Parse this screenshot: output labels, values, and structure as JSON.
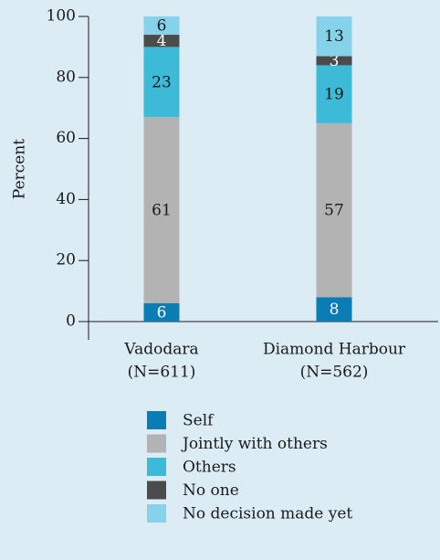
{
  "chart_data": {
    "type": "stacked_bar",
    "categories": [
      [
        "Vadodara",
        "(N=611)"
      ],
      [
        "Diamond Harbour",
        "(N=562)"
      ]
    ],
    "y_label": "Percent",
    "ylim": [
      0,
      100
    ],
    "yticks": [
      0,
      20,
      40,
      60,
      80,
      100
    ],
    "series": [
      {
        "name": "Self",
        "color": "#0a7db4",
        "values": [
          6,
          8
        ]
      },
      {
        "name": "Jointly with others",
        "color": "#b3b3b3",
        "values": [
          61,
          57
        ]
      },
      {
        "name": "Others",
        "color": "#3dbad8",
        "values": [
          23,
          19
        ]
      },
      {
        "name": "No one",
        "color": "#4b4b4b",
        "values": [
          4,
          3
        ]
      },
      {
        "name": "No decision made yet",
        "color": "#86d2ea",
        "values": [
          6,
          13
        ]
      }
    ],
    "legend": "bottom"
  }
}
